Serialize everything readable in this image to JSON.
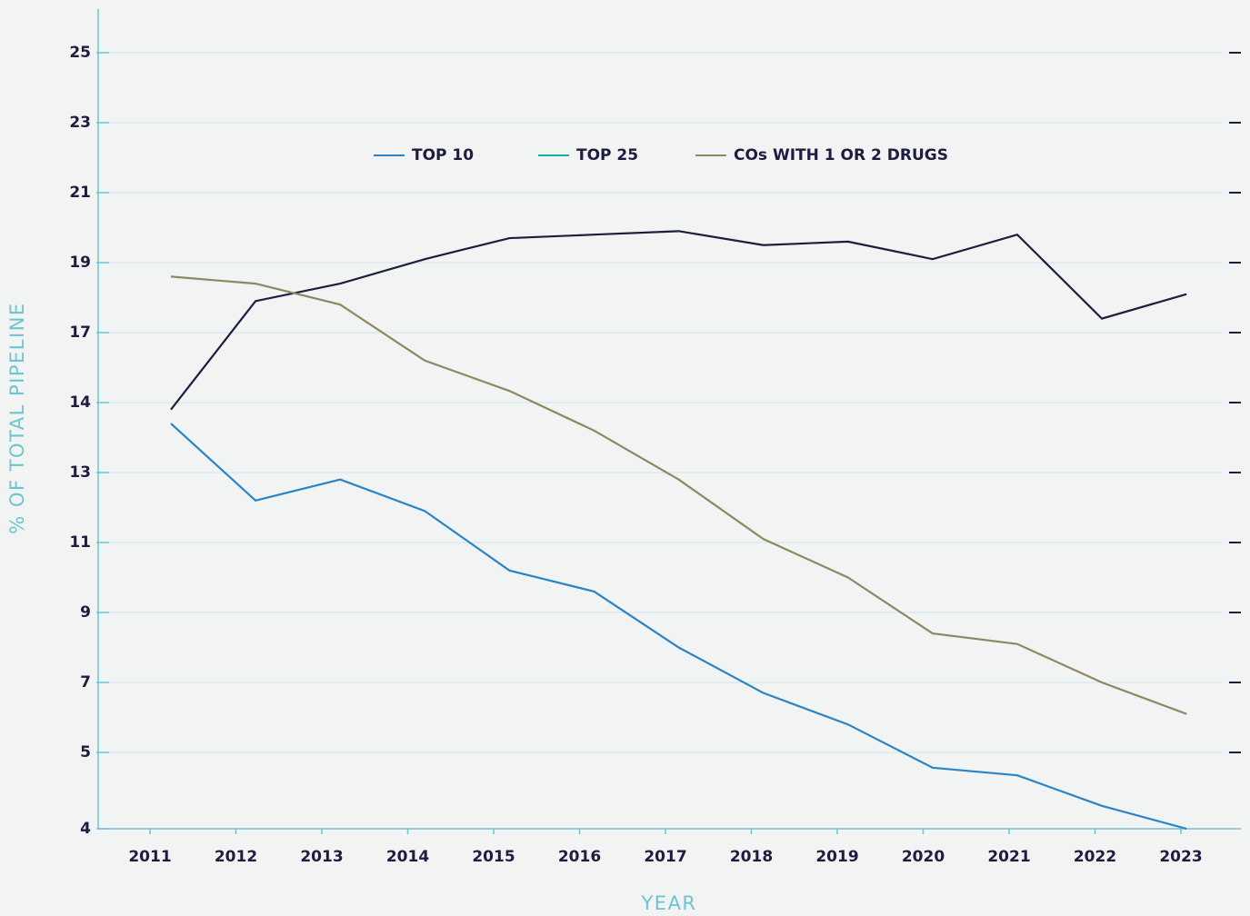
{
  "chart_data": {
    "type": "line",
    "xlabel": "YEAR",
    "ylabel": "% OF TOTAL PIPELINE",
    "categories": [
      "2011",
      "2012",
      "2013",
      "2014",
      "2015",
      "2016",
      "2017",
      "2018",
      "2019",
      "2020",
      "2021",
      "2022",
      "2023"
    ],
    "series": [
      {
        "name": "TOP 10",
        "color": "#2a84c6",
        "values": [
          13.7,
          12.2,
          12.8,
          11.9,
          10.2,
          9.6,
          8.0,
          6.7,
          5.8,
          4.8,
          4.7,
          4.3,
          4.0
        ]
      },
      {
        "name": "TOP 25",
        "color": "#1e1d3f",
        "values": [
          13.9,
          17.9,
          18.4,
          19.1,
          19.7,
          19.8,
          19.9,
          19.5,
          19.6,
          19.1,
          19.8,
          17.4,
          18.1
        ]
      },
      {
        "name": "COs WITH 1 OR 2 DRUGS",
        "color": "#8a8a62",
        "values": [
          18.6,
          18.4,
          17.8,
          15.8,
          14.5,
          13.6,
          12.8,
          11.1,
          10.0,
          8.4,
          8.1,
          7.0,
          6.1
        ]
      }
    ],
    "ylim": [
      4,
      25
    ],
    "yticks": [
      4,
      5,
      7,
      9,
      11,
      13,
      14,
      17,
      19,
      21,
      23,
      25
    ],
    "grid": true
  }
}
